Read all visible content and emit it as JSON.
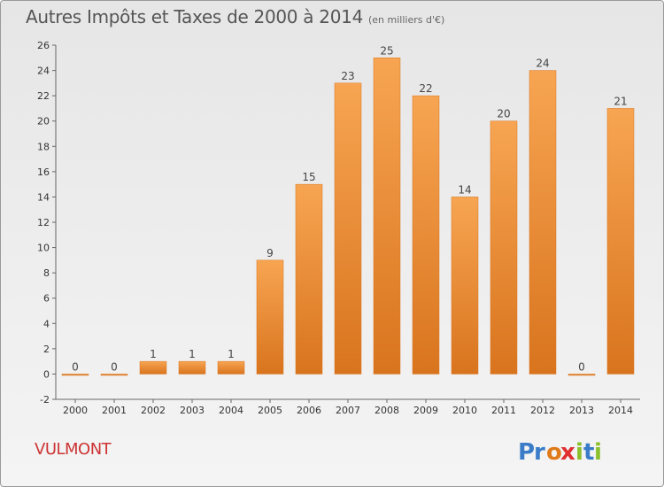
{
  "title": "Autres Impôts et Taxes de 2000 à 2014",
  "subtitle": "(en milliers d'€)",
  "commune": "VULMONT",
  "logo": {
    "text": "Proxiti",
    "letters": [
      "P",
      "r",
      "o",
      "x",
      "i",
      "t",
      "i"
    ],
    "colors": [
      "#3a7cc8",
      "#3a7cc8",
      "#e07a1a",
      "#e03030",
      "#8abf2a",
      "#3a7cc8",
      "#8abf2a"
    ]
  },
  "colors": {
    "bar_light": "#f7a552",
    "bar_dark": "#d9741e",
    "title": "#555555",
    "commune": "#cc3333"
  },
  "chart_data": {
    "type": "bar",
    "title": "Autres Impôts et Taxes de 2000 à 2014",
    "subtitle": "(en milliers d'€)",
    "categories": [
      "2000",
      "2001",
      "2002",
      "2003",
      "2004",
      "2005",
      "2006",
      "2007",
      "2008",
      "2009",
      "2010",
      "2011",
      "2012",
      "2013",
      "2014"
    ],
    "values": [
      0,
      0,
      1,
      1,
      1,
      9,
      15,
      23,
      25,
      22,
      14,
      20,
      24,
      0,
      21
    ],
    "ylim": [
      -2,
      26
    ],
    "yticks": [
      -2,
      0,
      2,
      4,
      6,
      8,
      10,
      12,
      14,
      16,
      18,
      20,
      22,
      24,
      26
    ],
    "grid": false,
    "legend": "none"
  }
}
